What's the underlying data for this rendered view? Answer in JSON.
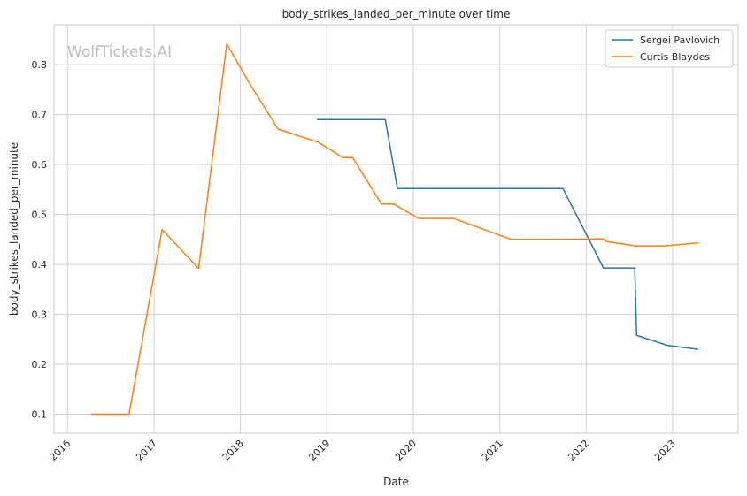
{
  "chart_data": {
    "type": "line",
    "title": "body_strikes_landed_per_minute over time",
    "xlabel": "Date",
    "ylabel": "body_strikes_landed_per_minute",
    "watermark": "WolfTickets.AI",
    "x_ticks": [
      "2016",
      "2017",
      "2018",
      "2019",
      "2020",
      "2021",
      "2022",
      "2023"
    ],
    "y_ticks": [
      0.1,
      0.2,
      0.3,
      0.4,
      0.5,
      0.6,
      0.7,
      0.8
    ],
    "xlim": [
      "2015-11-05",
      "2023-10-05"
    ],
    "ylim": [
      0.062,
      0.88
    ],
    "grid": true,
    "legend_position": "top-right",
    "series": [
      {
        "name": "Sergei Pavlovich",
        "color": "#1f77b4",
        "points": [
          [
            "2018-11-20",
            0.69
          ],
          [
            "2019-09-05",
            0.69
          ],
          [
            "2019-10-26",
            0.552
          ],
          [
            "2021-09-25",
            0.552
          ],
          [
            "2022-03-15",
            0.393
          ],
          [
            "2022-07-25",
            0.393
          ],
          [
            "2022-08-02",
            0.258
          ],
          [
            "2022-12-10",
            0.238
          ],
          [
            "2023-04-20",
            0.23
          ]
        ]
      },
      {
        "name": "Curtis Blaydes",
        "color": "#ff7f0e",
        "points": [
          [
            "2016-04-10",
            0.1
          ],
          [
            "2016-09-17",
            0.1
          ],
          [
            "2017-02-04",
            0.47
          ],
          [
            "2017-07-08",
            0.392
          ],
          [
            "2017-11-04",
            0.842
          ],
          [
            "2018-02-05",
            0.765
          ],
          [
            "2018-06-09",
            0.671
          ],
          [
            "2018-11-24",
            0.645
          ],
          [
            "2019-03-10",
            0.614
          ],
          [
            "2019-04-20",
            0.614
          ],
          [
            "2019-08-20",
            0.521
          ],
          [
            "2019-10-10",
            0.521
          ],
          [
            "2020-01-25",
            0.492
          ],
          [
            "2020-06-20",
            0.492
          ],
          [
            "2021-02-20",
            0.45
          ],
          [
            "2022-03-15",
            0.451
          ],
          [
            "2022-03-26",
            0.446
          ],
          [
            "2022-07-30",
            0.437
          ],
          [
            "2022-11-20",
            0.437
          ],
          [
            "2023-04-22",
            0.443
          ]
        ]
      }
    ]
  }
}
